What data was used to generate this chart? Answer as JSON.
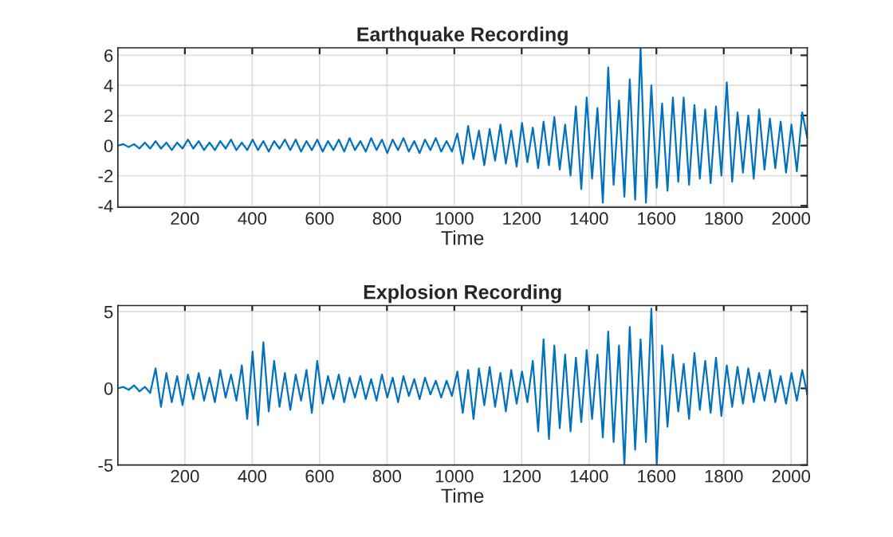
{
  "chart_data": [
    {
      "type": "line",
      "title": "Earthquake Recording",
      "xlabel": "Time",
      "x": [
        1,
        17,
        33,
        49,
        65,
        81,
        97,
        113,
        129,
        145,
        161,
        177,
        193,
        209,
        225,
        241,
        257,
        273,
        289,
        305,
        321,
        337,
        353,
        369,
        385,
        401,
        417,
        433,
        449,
        465,
        481,
        497,
        513,
        529,
        545,
        561,
        577,
        593,
        609,
        625,
        641,
        657,
        673,
        689,
        705,
        721,
        737,
        753,
        769,
        785,
        801,
        817,
        833,
        849,
        865,
        881,
        897,
        913,
        929,
        945,
        961,
        977,
        993,
        1009,
        1025,
        1041,
        1057,
        1073,
        1089,
        1105,
        1121,
        1137,
        1153,
        1169,
        1185,
        1201,
        1217,
        1233,
        1249,
        1265,
        1281,
        1297,
        1313,
        1329,
        1345,
        1361,
        1377,
        1393,
        1409,
        1425,
        1441,
        1457,
        1473,
        1489,
        1505,
        1521,
        1537,
        1553,
        1569,
        1585,
        1601,
        1617,
        1633,
        1649,
        1665,
        1681,
        1697,
        1713,
        1729,
        1745,
        1761,
        1777,
        1793,
        1809,
        1825,
        1841,
        1857,
        1873,
        1889,
        1905,
        1921,
        1937,
        1953,
        1969,
        1985,
        2001,
        2017,
        2033,
        2048
      ],
      "series": [
        {
          "color": "#0072bd",
          "values": [
            0,
            0.1,
            -0.1,
            0.1,
            -0.2,
            0.2,
            -0.2,
            0.3,
            -0.2,
            0.2,
            -0.3,
            0.2,
            -0.2,
            0.4,
            -0.2,
            0.3,
            -0.3,
            0.2,
            -0.3,
            0.3,
            -0.2,
            0.4,
            -0.3,
            0.2,
            -0.3,
            0.4,
            -0.3,
            0.3,
            -0.4,
            0.3,
            -0.2,
            0.4,
            -0.3,
            0.4,
            -0.4,
            0.3,
            -0.3,
            0.4,
            -0.4,
            0.3,
            -0.3,
            0.4,
            -0.4,
            0.5,
            -0.3,
            0.3,
            -0.4,
            0.5,
            -0.3,
            0.4,
            -0.5,
            0.4,
            -0.3,
            0.5,
            -0.4,
            0.3,
            -0.5,
            0.4,
            -0.3,
            0.5,
            -0.4,
            0.3,
            -0.4,
            0.8,
            -1.2,
            1.3,
            -0.9,
            1.0,
            -1.3,
            1.1,
            -1.0,
            1.4,
            -1.2,
            1.0,
            -1.4,
            1.5,
            -1.1,
            1.2,
            -1.5,
            1.6,
            -1.3,
            1.9,
            -1.6,
            1.4,
            -2.0,
            2.6,
            -2.9,
            3.2,
            -2.2,
            2.5,
            -3.8,
            5.2,
            -2.6,
            3.0,
            -3.4,
            4.4,
            -3.6,
            6.5,
            -3.8,
            4.0,
            -2.8,
            2.8,
            -3.0,
            3.2,
            -2.4,
            3.2,
            -2.6,
            2.7,
            -2.2,
            2.4,
            -2.5,
            2.6,
            -2.0,
            4.2,
            -2.4,
            2.2,
            -1.8,
            2.0,
            -2.2,
            2.4,
            -1.6,
            1.8,
            -1.5,
            1.6,
            -1.8,
            1.4,
            -1.7,
            2.2,
            0.5
          ]
        }
      ],
      "xlim": [
        1,
        2048
      ],
      "ylim": [
        -4.1,
        6.5
      ],
      "xticks": [
        200,
        400,
        600,
        800,
        1000,
        1200,
        1400,
        1600,
        1800,
        2000
      ],
      "yticks": [
        -4,
        -2,
        0,
        2,
        4,
        6
      ],
      "grid": true
    },
    {
      "type": "line",
      "title": "Explosion Recording",
      "xlabel": "Time",
      "x": [
        1,
        17,
        33,
        49,
        65,
        81,
        97,
        113,
        129,
        145,
        161,
        177,
        193,
        209,
        225,
        241,
        257,
        273,
        289,
        305,
        321,
        337,
        353,
        369,
        385,
        401,
        417,
        433,
        449,
        465,
        481,
        497,
        513,
        529,
        545,
        561,
        577,
        593,
        609,
        625,
        641,
        657,
        673,
        689,
        705,
        721,
        737,
        753,
        769,
        785,
        801,
        817,
        833,
        849,
        865,
        881,
        897,
        913,
        929,
        945,
        961,
        977,
        993,
        1009,
        1025,
        1041,
        1057,
        1073,
        1089,
        1105,
        1121,
        1137,
        1153,
        1169,
        1185,
        1201,
        1217,
        1233,
        1249,
        1265,
        1281,
        1297,
        1313,
        1329,
        1345,
        1361,
        1377,
        1393,
        1409,
        1425,
        1441,
        1457,
        1473,
        1489,
        1505,
        1521,
        1537,
        1553,
        1569,
        1585,
        1601,
        1617,
        1633,
        1649,
        1665,
        1681,
        1697,
        1713,
        1729,
        1745,
        1761,
        1777,
        1793,
        1809,
        1825,
        1841,
        1857,
        1873,
        1889,
        1905,
        1921,
        1937,
        1953,
        1969,
        1985,
        2001,
        2017,
        2033,
        2048
      ],
      "series": [
        {
          "color": "#0072bd",
          "values": [
            0,
            0.1,
            -0.1,
            0.2,
            -0.2,
            0.1,
            -0.3,
            1.3,
            -1.2,
            1.0,
            -0.9,
            0.8,
            -1.1,
            0.9,
            -0.7,
            1.0,
            -0.8,
            0.7,
            -0.9,
            1.2,
            -0.6,
            0.9,
            -0.8,
            1.5,
            -2.0,
            2.4,
            -2.4,
            3.0,
            -1.5,
            1.8,
            -1.2,
            1.0,
            -1.4,
            0.9,
            -0.8,
            1.2,
            -1.6,
            1.8,
            -1.0,
            0.8,
            -0.7,
            0.9,
            -0.9,
            0.7,
            -0.6,
            0.8,
            -0.7,
            0.6,
            -0.8,
            0.9,
            -0.6,
            0.7,
            -0.9,
            0.8,
            -0.5,
            0.6,
            -0.7,
            0.7,
            -0.4,
            0.5,
            -0.6,
            0.5,
            -0.5,
            1.1,
            -1.6,
            1.2,
            -2.0,
            1.3,
            -1.1,
            1.4,
            -1.2,
            1.0,
            -1.5,
            1.2,
            -1.0,
            1.1,
            -0.9,
            1.8,
            -2.8,
            3.2,
            -3.3,
            2.8,
            -2.6,
            2.2,
            -2.8,
            2.0,
            -2.2,
            2.5,
            -2.0,
            2.2,
            -3.2,
            3.7,
            -3.5,
            2.8,
            -5.0,
            4.0,
            -4.0,
            3.2,
            -3.5,
            5.2,
            -5.0,
            2.8,
            -2.5,
            2.2,
            -1.5,
            1.6,
            -2.0,
            2.3,
            -1.4,
            1.8,
            -1.6,
            2.0,
            -1.8,
            1.5,
            -1.2,
            1.4,
            -1.0,
            1.3,
            -0.9,
            1.0,
            -0.8,
            1.2,
            -0.9,
            0.8,
            -1.0,
            1.0,
            -0.8,
            1.2,
            -0.4
          ]
        }
      ],
      "xlim": [
        1,
        2048
      ],
      "ylim": [
        -5,
        5.4
      ],
      "xticks": [
        200,
        400,
        600,
        800,
        1000,
        1200,
        1400,
        1600,
        1800,
        2000
      ],
      "yticks": [
        -5,
        0,
        5
      ],
      "grid": true
    }
  ]
}
